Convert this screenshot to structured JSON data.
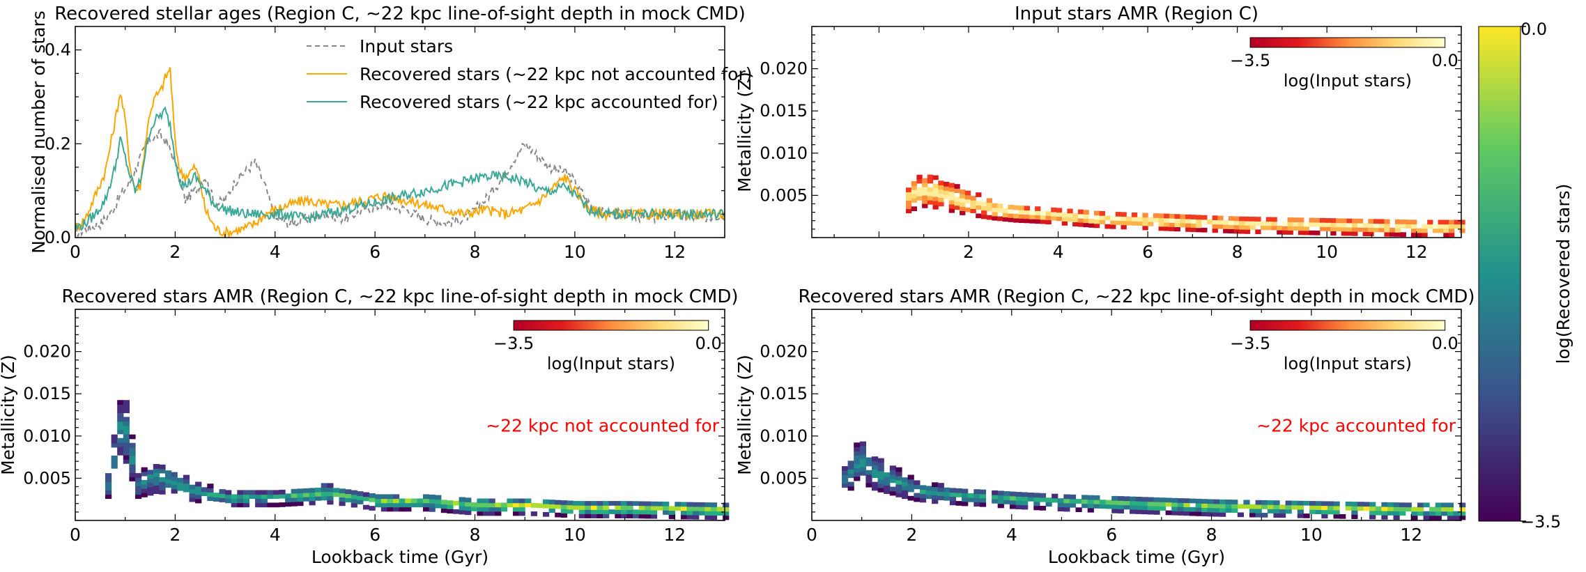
{
  "figure": {
    "colorbar_label": "log(Recovered stars)",
    "colorbar_ticks": [
      "0.0",
      "−3.5"
    ]
  },
  "chart_data": [
    {
      "type": "line",
      "title": "Recovered stellar ages (Region C, ∼22 kpc line-of-sight depth in mock CMD)",
      "xlabel": "",
      "ylabel": "Normalised number of stars",
      "xlim": [
        0,
        13
      ],
      "ylim": [
        0,
        0.45
      ],
      "xticks": [
        "0",
        "2",
        "4",
        "6",
        "8",
        "10",
        "12"
      ],
      "yticks": [
        "0.0",
        "0.2",
        "0.4"
      ],
      "legend_position": "top-center",
      "series": [
        {
          "name": "Input stars",
          "color": "#888888",
          "dashed": true,
          "x": [
            0,
            0.3,
            0.5,
            0.7,
            0.9,
            1.1,
            1.3,
            1.5,
            1.7,
            1.85,
            2.0,
            2.2,
            2.4,
            2.6,
            2.8,
            3.0,
            3.2,
            3.4,
            3.6,
            3.8,
            4.0,
            4.3,
            4.6,
            5.0,
            5.4,
            5.8,
            6.2,
            6.6,
            7.0,
            7.4,
            7.8,
            8.2,
            8.5,
            8.8,
            9.0,
            9.2,
            9.5,
            9.8,
            10.0,
            10.3,
            10.6,
            11.0,
            11.5,
            12.0,
            12.5,
            13.0
          ],
          "y": [
            0.01,
            0.02,
            0.03,
            0.05,
            0.09,
            0.12,
            0.17,
            0.21,
            0.22,
            0.2,
            0.16,
            0.08,
            0.1,
            0.13,
            0.07,
            0.08,
            0.12,
            0.14,
            0.16,
            0.11,
            0.04,
            0.03,
            0.04,
            0.05,
            0.04,
            0.06,
            0.07,
            0.06,
            0.04,
            0.03,
            0.04,
            0.08,
            0.12,
            0.17,
            0.2,
            0.18,
            0.15,
            0.14,
            0.12,
            0.07,
            0.05,
            0.05,
            0.04,
            0.05,
            0.04,
            0.05
          ]
        },
        {
          "name": "Recovered stars (∼22 kpc not accounted for)",
          "color": "#ffa500",
          "dashed": false,
          "x": [
            0,
            0.2,
            0.4,
            0.6,
            0.8,
            0.9,
            1.0,
            1.1,
            1.2,
            1.3,
            1.4,
            1.5,
            1.6,
            1.7,
            1.8,
            1.9,
            2.0,
            2.1,
            2.2,
            2.4,
            2.5,
            2.6,
            2.8,
            3.0,
            3.2,
            3.4,
            3.6,
            3.8,
            4.0,
            4.3,
            4.6,
            5.0,
            5.4,
            5.8,
            6.2,
            6.6,
            7.0,
            7.4,
            7.8,
            8.2,
            8.6,
            9.0,
            9.3,
            9.6,
            9.8,
            10.0,
            10.3,
            10.6,
            11.0,
            11.5,
            12.0,
            12.5,
            13.0
          ],
          "y": [
            0.02,
            0.04,
            0.09,
            0.14,
            0.25,
            0.31,
            0.25,
            0.15,
            0.1,
            0.11,
            0.2,
            0.27,
            0.3,
            0.31,
            0.34,
            0.36,
            0.2,
            0.14,
            0.13,
            0.15,
            0.12,
            0.06,
            0.02,
            0.01,
            0.015,
            0.02,
            0.03,
            0.05,
            0.06,
            0.07,
            0.08,
            0.07,
            0.07,
            0.08,
            0.09,
            0.08,
            0.07,
            0.06,
            0.05,
            0.06,
            0.05,
            0.06,
            0.08,
            0.11,
            0.13,
            0.1,
            0.06,
            0.05,
            0.05,
            0.05,
            0.05,
            0.05,
            0.05
          ]
        },
        {
          "name": "Recovered stars (∼22 kpc accounted for)",
          "color": "#3aa895",
          "dashed": false,
          "x": [
            0,
            0.2,
            0.4,
            0.6,
            0.8,
            0.9,
            1.0,
            1.1,
            1.2,
            1.3,
            1.4,
            1.5,
            1.6,
            1.7,
            1.8,
            1.9,
            2.0,
            2.1,
            2.2,
            2.4,
            2.6,
            2.8,
            3.0,
            3.4,
            3.8,
            4.2,
            4.6,
            5.0,
            5.4,
            5.8,
            6.2,
            6.6,
            7.0,
            7.4,
            7.8,
            8.2,
            8.6,
            9.0,
            9.3,
            9.6,
            9.8,
            10.0,
            10.3,
            10.6,
            11.0,
            11.5,
            12.0,
            12.5,
            13.0
          ],
          "y": [
            0.02,
            0.03,
            0.05,
            0.08,
            0.15,
            0.21,
            0.17,
            0.13,
            0.1,
            0.12,
            0.18,
            0.23,
            0.25,
            0.26,
            0.27,
            0.24,
            0.17,
            0.12,
            0.11,
            0.13,
            0.1,
            0.07,
            0.06,
            0.05,
            0.05,
            0.05,
            0.04,
            0.05,
            0.06,
            0.07,
            0.08,
            0.09,
            0.1,
            0.11,
            0.12,
            0.13,
            0.13,
            0.12,
            0.1,
            0.1,
            0.11,
            0.09,
            0.06,
            0.05,
            0.05,
            0.05,
            0.05,
            0.05,
            0.05
          ]
        }
      ]
    },
    {
      "type": "heatmap",
      "title": "Input stars AMR (Region C)",
      "xlabel": "",
      "ylabel": "Metallicity (Z)",
      "xlim": [
        -1.5,
        13
      ],
      "ylim": [
        0,
        0.025
      ],
      "xticks": [
        "2",
        "4",
        "6",
        "8",
        "10",
        "12"
      ],
      "yticks": [
        "0.005",
        "0.010",
        "0.015",
        "0.020"
      ],
      "colormap": "YlOrRd_r",
      "colorbar": {
        "label": "log(Input stars)",
        "min": "−3.5",
        "max": "0.0"
      },
      "annotation": "",
      "track": {
        "x": [
          0.6,
          0.9,
          1.2,
          1.6,
          2.0,
          2.5,
          3.0,
          4.0,
          5.0,
          6.0,
          7.0,
          8.0,
          9.0,
          10.0,
          11.0,
          12.0,
          13.0
        ],
        "z": [
          0.0045,
          0.0055,
          0.0052,
          0.0045,
          0.0038,
          0.0032,
          0.0028,
          0.0024,
          0.002,
          0.0018,
          0.0016,
          0.0014,
          0.0013,
          0.0012,
          0.0011,
          0.001,
          0.001
        ]
      }
    },
    {
      "type": "heatmap",
      "title": "Recovered stars AMR (Region C, ∼22 kpc line-of-sight depth in mock CMD)",
      "xlabel": "Lookback time (Gyr)",
      "ylabel": "Metallicity (Z)",
      "xlim": [
        0,
        13
      ],
      "ylim": [
        0,
        0.025
      ],
      "xticks": [
        "0",
        "2",
        "4",
        "6",
        "8",
        "10",
        "12"
      ],
      "yticks": [
        "0.005",
        "0.010",
        "0.015",
        "0.020"
      ],
      "colormap": "viridis",
      "colorbar": {
        "label": "log(Input stars)",
        "min": "−3.5",
        "max": "0.0"
      },
      "annotation": "∼22 kpc not accounted for",
      "track": {
        "x": [
          0.6,
          0.9,
          1.2,
          1.6,
          2.0,
          2.5,
          3.0,
          4.0,
          5.0,
          6.0,
          7.0,
          8.0,
          9.0,
          10.0,
          11.0,
          12.0,
          13.0
        ],
        "z": [
          0.004,
          0.012,
          0.004,
          0.005,
          0.004,
          0.003,
          0.0025,
          0.0025,
          0.003,
          0.002,
          0.002,
          0.0015,
          0.0015,
          0.0012,
          0.0012,
          0.0011,
          0.001
        ]
      }
    },
    {
      "type": "heatmap",
      "title": "Recovered stars AMR (Region C, ∼22 kpc line-of-sight depth in mock CMD)",
      "xlabel": "Lookback time (Gyr)",
      "ylabel": "Metallicity (Z)",
      "xlim": [
        0,
        13
      ],
      "ylim": [
        0,
        0.025
      ],
      "xticks": [
        "0",
        "2",
        "4",
        "6",
        "8",
        "10",
        "12"
      ],
      "yticks": [
        "0.005",
        "0.010",
        "0.015",
        "0.020"
      ],
      "colormap": "viridis",
      "colorbar": {
        "label": "log(Input stars)",
        "min": "−3.5",
        "max": "0.0"
      },
      "annotation": "∼22 kpc accounted for",
      "track": {
        "x": [
          0.6,
          0.9,
          1.2,
          1.6,
          2.0,
          2.5,
          3.0,
          4.0,
          5.0,
          6.0,
          7.0,
          8.0,
          9.0,
          10.0,
          11.0,
          12.0,
          13.0
        ],
        "z": [
          0.0045,
          0.007,
          0.0055,
          0.0045,
          0.0035,
          0.003,
          0.0027,
          0.0023,
          0.002,
          0.0018,
          0.0016,
          0.0014,
          0.0013,
          0.0012,
          0.0011,
          0.001,
          0.001
        ]
      }
    }
  ]
}
